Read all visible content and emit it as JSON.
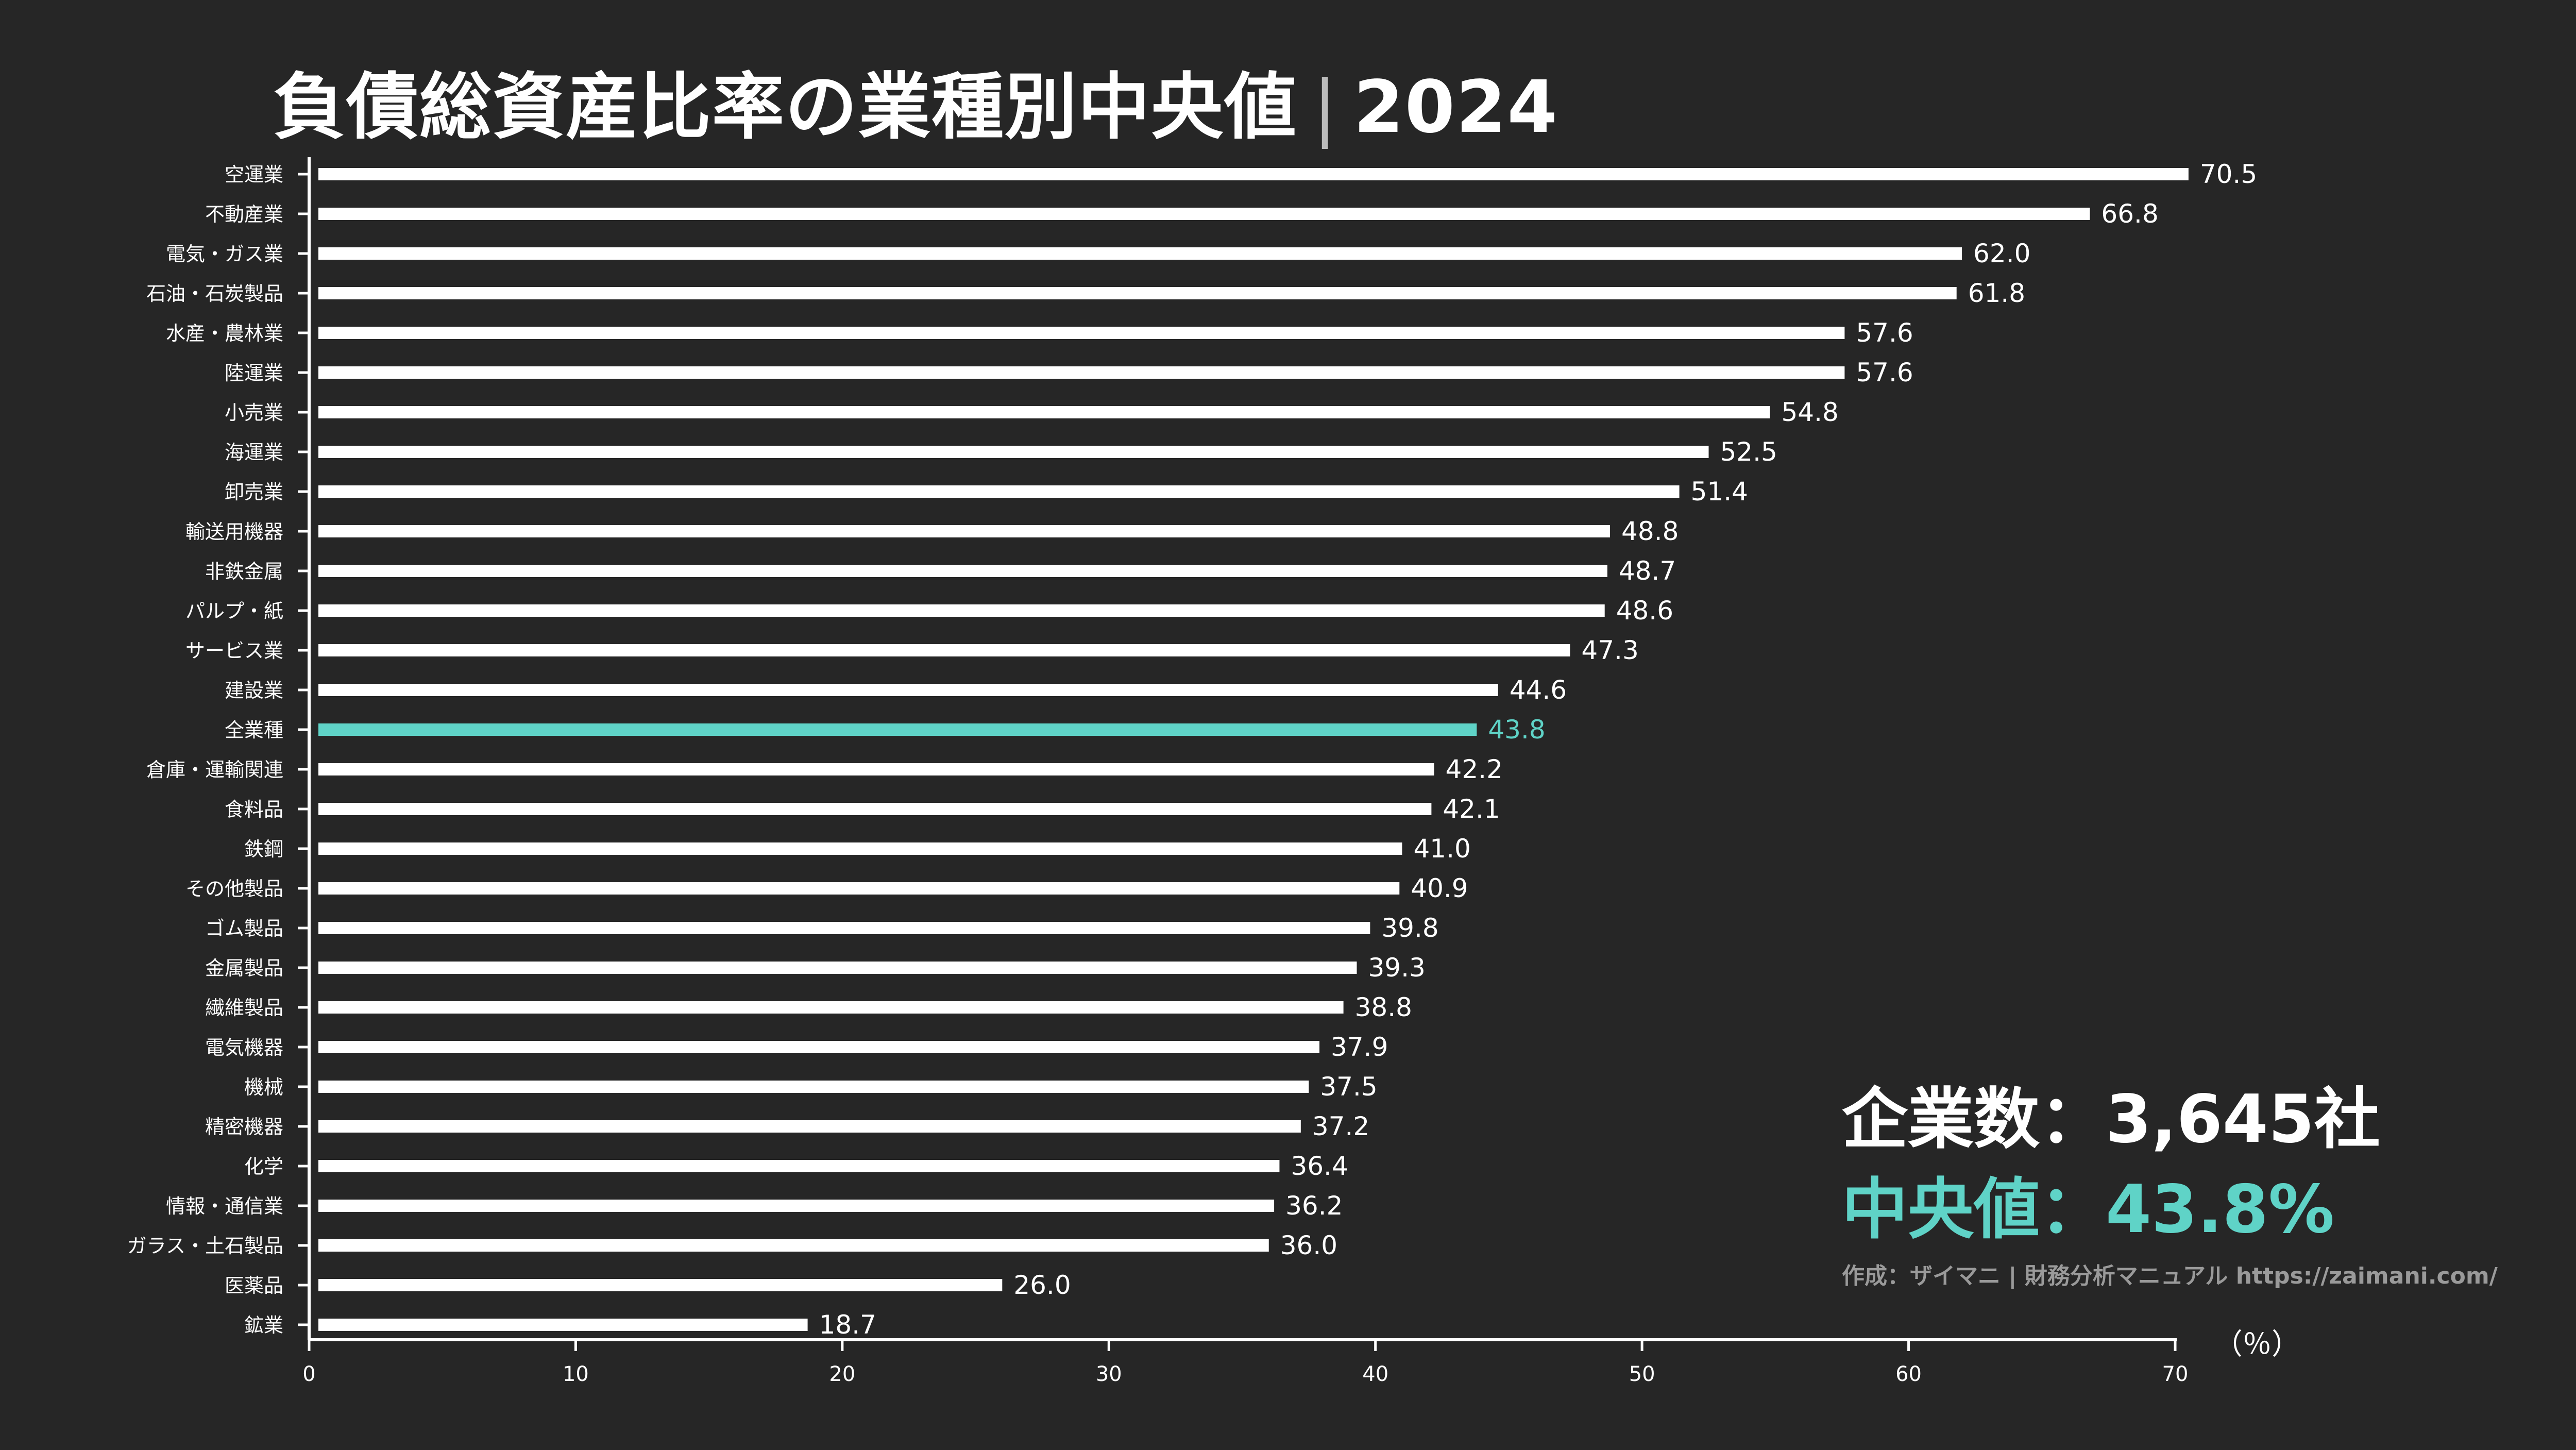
{
  "title": "負債総資産比率の業種別中央値",
  "title_separator": "|",
  "title_year": "2024",
  "stats": {
    "count_label": "企業数：3,645社",
    "median_label": "中央値：43.8%",
    "credit": "作成：ザイマニ | 財務分析マニュアル https://zaimani.com/"
  },
  "colors": {
    "background": "#262626",
    "bar": "#ffffff",
    "highlight": "#5fd3c7",
    "axis": "#ffffff",
    "text": "#ffffff",
    "credit": "#9a9a9a"
  },
  "chart_data": {
    "type": "bar",
    "orientation": "horizontal",
    "title": "負債総資産比率の業種別中央値｜2024",
    "xlabel": "（％）",
    "ylabel": "",
    "xlim": [
      0,
      70
    ],
    "xticks": [
      0,
      10,
      20,
      30,
      40,
      50,
      60,
      70
    ],
    "highlight_category": "全業種",
    "categories": [
      "空運業",
      "不動産業",
      "電気・ガス業",
      "石油・石炭製品",
      "水産・農林業",
      "陸運業",
      "小売業",
      "海運業",
      "卸売業",
      "輸送用機器",
      "非鉄金属",
      "パルプ・紙",
      "サービス業",
      "建設業",
      "全業種",
      "倉庫・運輸関連",
      "食料品",
      "鉄鋼",
      "その他製品",
      "ゴム製品",
      "金属製品",
      "繊維製品",
      "電気機器",
      "機械",
      "精密機器",
      "化学",
      "情報・通信業",
      "ガラス・土石製品",
      "医薬品",
      "鉱業"
    ],
    "values": [
      70.5,
      66.8,
      62.0,
      61.8,
      57.6,
      57.6,
      54.8,
      52.5,
      51.4,
      48.8,
      48.7,
      48.6,
      47.3,
      44.6,
      43.8,
      42.2,
      42.1,
      41.0,
      40.9,
      39.8,
      39.3,
      38.8,
      37.9,
      37.5,
      37.2,
      36.4,
      36.2,
      36.0,
      26.0,
      18.7
    ],
    "value_labels": [
      "70.5",
      "66.8",
      "62.0",
      "61.8",
      "57.6",
      "57.6",
      "54.8",
      "52.5",
      "51.4",
      "48.8",
      "48.7",
      "48.6",
      "47.3",
      "44.6",
      "43.8",
      "42.2",
      "42.1",
      "41.0",
      "40.9",
      "39.8",
      "39.3",
      "38.8",
      "37.9",
      "37.5",
      "37.2",
      "36.4",
      "36.2",
      "36.0",
      "26.0",
      "18.7"
    ],
    "grid": false,
    "legend": "none"
  }
}
